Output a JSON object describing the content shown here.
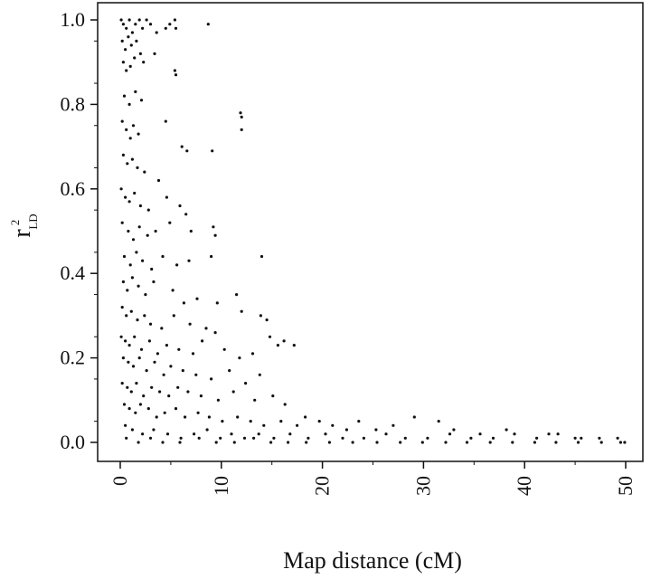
{
  "chart_data": {
    "type": "scatter",
    "title": "",
    "xlabel": "Map distance (cM)",
    "ylabel": {
      "base": "r",
      "superscript": "2",
      "subscript": "LD"
    },
    "xlim": [
      0,
      50
    ],
    "ylim": [
      0,
      1
    ],
    "x_ticks": [
      "0",
      "10",
      "20",
      "30",
      "40",
      "50"
    ],
    "y_ticks": [
      "0.0",
      "0.2",
      "0.4",
      "0.6",
      "0.8",
      "1.0"
    ],
    "grid": false,
    "legend": "none",
    "point_color": "#111111",
    "series": [
      {
        "points": [
          [
            0.1,
            1.0
          ],
          [
            0.3,
            0.99
          ],
          [
            0.6,
            0.98
          ],
          [
            0.9,
            1.0
          ],
          [
            1.2,
            0.97
          ],
          [
            1.5,
            0.99
          ],
          [
            1.9,
            1.0
          ],
          [
            2.2,
            0.98
          ],
          [
            2.6,
            1.0
          ],
          [
            3.0,
            0.99
          ],
          [
            3.6,
            0.97
          ],
          [
            4.5,
            0.98
          ],
          [
            4.9,
            0.99
          ],
          [
            5.4,
            1.0
          ],
          [
            5.5,
            0.98
          ],
          [
            8.7,
            0.99
          ],
          [
            0.2,
            0.95
          ],
          [
            0.5,
            0.93
          ],
          [
            0.8,
            0.96
          ],
          [
            1.1,
            0.94
          ],
          [
            1.6,
            0.95
          ],
          [
            2.0,
            0.92
          ],
          [
            0.3,
            0.9
          ],
          [
            0.6,
            0.88
          ],
          [
            1.0,
            0.89
          ],
          [
            1.4,
            0.91
          ],
          [
            2.3,
            0.9
          ],
          [
            3.4,
            0.92
          ],
          [
            5.4,
            0.88
          ],
          [
            5.5,
            0.87
          ],
          [
            0.4,
            0.82
          ],
          [
            0.9,
            0.8
          ],
          [
            1.5,
            0.83
          ],
          [
            2.1,
            0.81
          ],
          [
            11.9,
            0.78
          ],
          [
            12.0,
            0.77
          ],
          [
            12.0,
            0.74
          ],
          [
            0.2,
            0.76
          ],
          [
            0.6,
            0.74
          ],
          [
            1.0,
            0.72
          ],
          [
            1.3,
            0.75
          ],
          [
            1.8,
            0.73
          ],
          [
            4.5,
            0.76
          ],
          [
            0.3,
            0.68
          ],
          [
            0.7,
            0.66
          ],
          [
            1.2,
            0.67
          ],
          [
            1.7,
            0.65
          ],
          [
            2.4,
            0.64
          ],
          [
            3.8,
            0.62
          ],
          [
            6.1,
            0.7
          ],
          [
            6.6,
            0.69
          ],
          [
            9.1,
            0.69
          ],
          [
            0.1,
            0.6
          ],
          [
            0.5,
            0.58
          ],
          [
            0.9,
            0.57
          ],
          [
            1.4,
            0.59
          ],
          [
            2.0,
            0.56
          ],
          [
            2.8,
            0.55
          ],
          [
            4.6,
            0.58
          ],
          [
            5.9,
            0.56
          ],
          [
            6.5,
            0.54
          ],
          [
            0.2,
            0.52
          ],
          [
            0.8,
            0.5
          ],
          [
            1.3,
            0.48
          ],
          [
            1.9,
            0.51
          ],
          [
            2.7,
            0.49
          ],
          [
            3.5,
            0.5
          ],
          [
            4.9,
            0.52
          ],
          [
            7.0,
            0.5
          ],
          [
            9.2,
            0.51
          ],
          [
            9.4,
            0.49
          ],
          [
            0.4,
            0.44
          ],
          [
            1.0,
            0.42
          ],
          [
            1.6,
            0.45
          ],
          [
            2.2,
            0.43
          ],
          [
            3.1,
            0.41
          ],
          [
            4.2,
            0.44
          ],
          [
            5.6,
            0.42
          ],
          [
            6.8,
            0.43
          ],
          [
            9.0,
            0.44
          ],
          [
            14.0,
            0.44
          ],
          [
            0.3,
            0.38
          ],
          [
            0.7,
            0.36
          ],
          [
            1.2,
            0.39
          ],
          [
            1.8,
            0.37
          ],
          [
            2.5,
            0.35
          ],
          [
            3.3,
            0.38
          ],
          [
            5.2,
            0.36
          ],
          [
            6.3,
            0.33
          ],
          [
            7.6,
            0.34
          ],
          [
            9.6,
            0.33
          ],
          [
            11.5,
            0.35
          ],
          [
            12.0,
            0.31
          ],
          [
            0.2,
            0.32
          ],
          [
            0.6,
            0.3
          ],
          [
            1.1,
            0.31
          ],
          [
            1.7,
            0.29
          ],
          [
            2.4,
            0.3
          ],
          [
            3.0,
            0.28
          ],
          [
            4.1,
            0.27
          ],
          [
            5.3,
            0.3
          ],
          [
            6.9,
            0.28
          ],
          [
            8.5,
            0.27
          ],
          [
            9.4,
            0.26
          ],
          [
            13.9,
            0.3
          ],
          [
            14.5,
            0.29
          ],
          [
            0.1,
            0.25
          ],
          [
            0.5,
            0.24
          ],
          [
            0.9,
            0.23
          ],
          [
            1.4,
            0.25
          ],
          [
            2.1,
            0.22
          ],
          [
            2.9,
            0.24
          ],
          [
            3.7,
            0.21
          ],
          [
            4.6,
            0.23
          ],
          [
            5.8,
            0.22
          ],
          [
            7.2,
            0.21
          ],
          [
            8.1,
            0.24
          ],
          [
            10.3,
            0.22
          ],
          [
            11.8,
            0.2
          ],
          [
            13.1,
            0.21
          ],
          [
            14.8,
            0.25
          ],
          [
            15.6,
            0.23
          ],
          [
            16.2,
            0.24
          ],
          [
            17.2,
            0.23
          ],
          [
            0.3,
            0.2
          ],
          [
            0.8,
            0.19
          ],
          [
            1.3,
            0.18
          ],
          [
            1.9,
            0.2
          ],
          [
            2.6,
            0.17
          ],
          [
            3.4,
            0.19
          ],
          [
            4.3,
            0.16
          ],
          [
            5.0,
            0.18
          ],
          [
            6.2,
            0.17
          ],
          [
            7.5,
            0.16
          ],
          [
            9.0,
            0.15
          ],
          [
            10.8,
            0.17
          ],
          [
            12.4,
            0.14
          ],
          [
            13.8,
            0.16
          ],
          [
            0.2,
            0.14
          ],
          [
            0.7,
            0.13
          ],
          [
            1.1,
            0.12
          ],
          [
            1.6,
            0.14
          ],
          [
            2.3,
            0.11
          ],
          [
            3.1,
            0.13
          ],
          [
            3.9,
            0.12
          ],
          [
            4.8,
            0.11
          ],
          [
            5.7,
            0.13
          ],
          [
            6.7,
            0.12
          ],
          [
            8.0,
            0.11
          ],
          [
            9.7,
            0.1
          ],
          [
            11.2,
            0.12
          ],
          [
            13.3,
            0.1
          ],
          [
            15.1,
            0.11
          ],
          [
            16.3,
            0.09
          ],
          [
            0.4,
            0.09
          ],
          [
            0.9,
            0.08
          ],
          [
            1.5,
            0.07
          ],
          [
            2.0,
            0.09
          ],
          [
            2.8,
            0.08
          ],
          [
            3.6,
            0.06
          ],
          [
            4.4,
            0.07
          ],
          [
            5.5,
            0.08
          ],
          [
            6.4,
            0.06
          ],
          [
            7.7,
            0.07
          ],
          [
            8.8,
            0.06
          ],
          [
            10.1,
            0.05
          ],
          [
            11.6,
            0.06
          ],
          [
            12.9,
            0.05
          ],
          [
            14.2,
            0.04
          ],
          [
            15.9,
            0.05
          ],
          [
            17.5,
            0.04
          ],
          [
            18.3,
            0.06
          ],
          [
            19.7,
            0.05
          ],
          [
            21.0,
            0.04
          ],
          [
            22.4,
            0.03
          ],
          [
            23.6,
            0.05
          ],
          [
            25.3,
            0.03
          ],
          [
            27.0,
            0.04
          ],
          [
            29.1,
            0.06
          ],
          [
            31.5,
            0.05
          ],
          [
            33.0,
            0.03
          ],
          [
            35.6,
            0.02
          ],
          [
            38.2,
            0.03
          ],
          [
            42.4,
            0.02
          ],
          [
            45.0,
            0.01
          ],
          [
            0.5,
            0.04
          ],
          [
            1.2,
            0.03
          ],
          [
            2.2,
            0.02
          ],
          [
            3.3,
            0.03
          ],
          [
            4.7,
            0.02
          ],
          [
            6.0,
            0.01
          ],
          [
            7.3,
            0.02
          ],
          [
            8.6,
            0.03
          ],
          [
            9.9,
            0.01
          ],
          [
            11.0,
            0.02
          ],
          [
            12.3,
            0.01
          ],
          [
            13.7,
            0.02
          ],
          [
            15.2,
            0.01
          ],
          [
            16.8,
            0.02
          ],
          [
            18.6,
            0.01
          ],
          [
            20.3,
            0.02
          ],
          [
            22.0,
            0.01
          ],
          [
            24.1,
            0.01
          ],
          [
            26.3,
            0.02
          ],
          [
            28.2,
            0.01
          ],
          [
            30.4,
            0.01
          ],
          [
            32.6,
            0.02
          ],
          [
            34.7,
            0.01
          ],
          [
            36.9,
            0.01
          ],
          [
            39.0,
            0.02
          ],
          [
            41.2,
            0.01
          ],
          [
            43.3,
            0.02
          ],
          [
            45.6,
            0.01
          ],
          [
            47.4,
            0.01
          ],
          [
            49.2,
            0.01
          ],
          [
            49.9,
            0.0
          ],
          [
            0.6,
            0.01
          ],
          [
            1.8,
            0.0
          ],
          [
            3.0,
            0.01
          ],
          [
            4.2,
            0.0
          ],
          [
            5.9,
            0.0
          ],
          [
            7.8,
            0.01
          ],
          [
            9.5,
            0.0
          ],
          [
            11.3,
            0.0
          ],
          [
            13.2,
            0.01
          ],
          [
            14.9,
            0.0
          ],
          [
            16.6,
            0.0
          ],
          [
            18.4,
            0.0
          ],
          [
            20.7,
            0.0
          ],
          [
            23.0,
            0.0
          ],
          [
            25.4,
            0.0
          ],
          [
            27.7,
            0.0
          ],
          [
            29.9,
            0.0
          ],
          [
            32.2,
            0.0
          ],
          [
            34.3,
            0.0
          ],
          [
            36.6,
            0.0
          ],
          [
            38.8,
            0.0
          ],
          [
            41.0,
            0.0
          ],
          [
            43.1,
            0.0
          ],
          [
            45.3,
            0.0
          ],
          [
            47.6,
            0.0
          ],
          [
            49.5,
            0.0
          ]
        ]
      }
    ]
  }
}
